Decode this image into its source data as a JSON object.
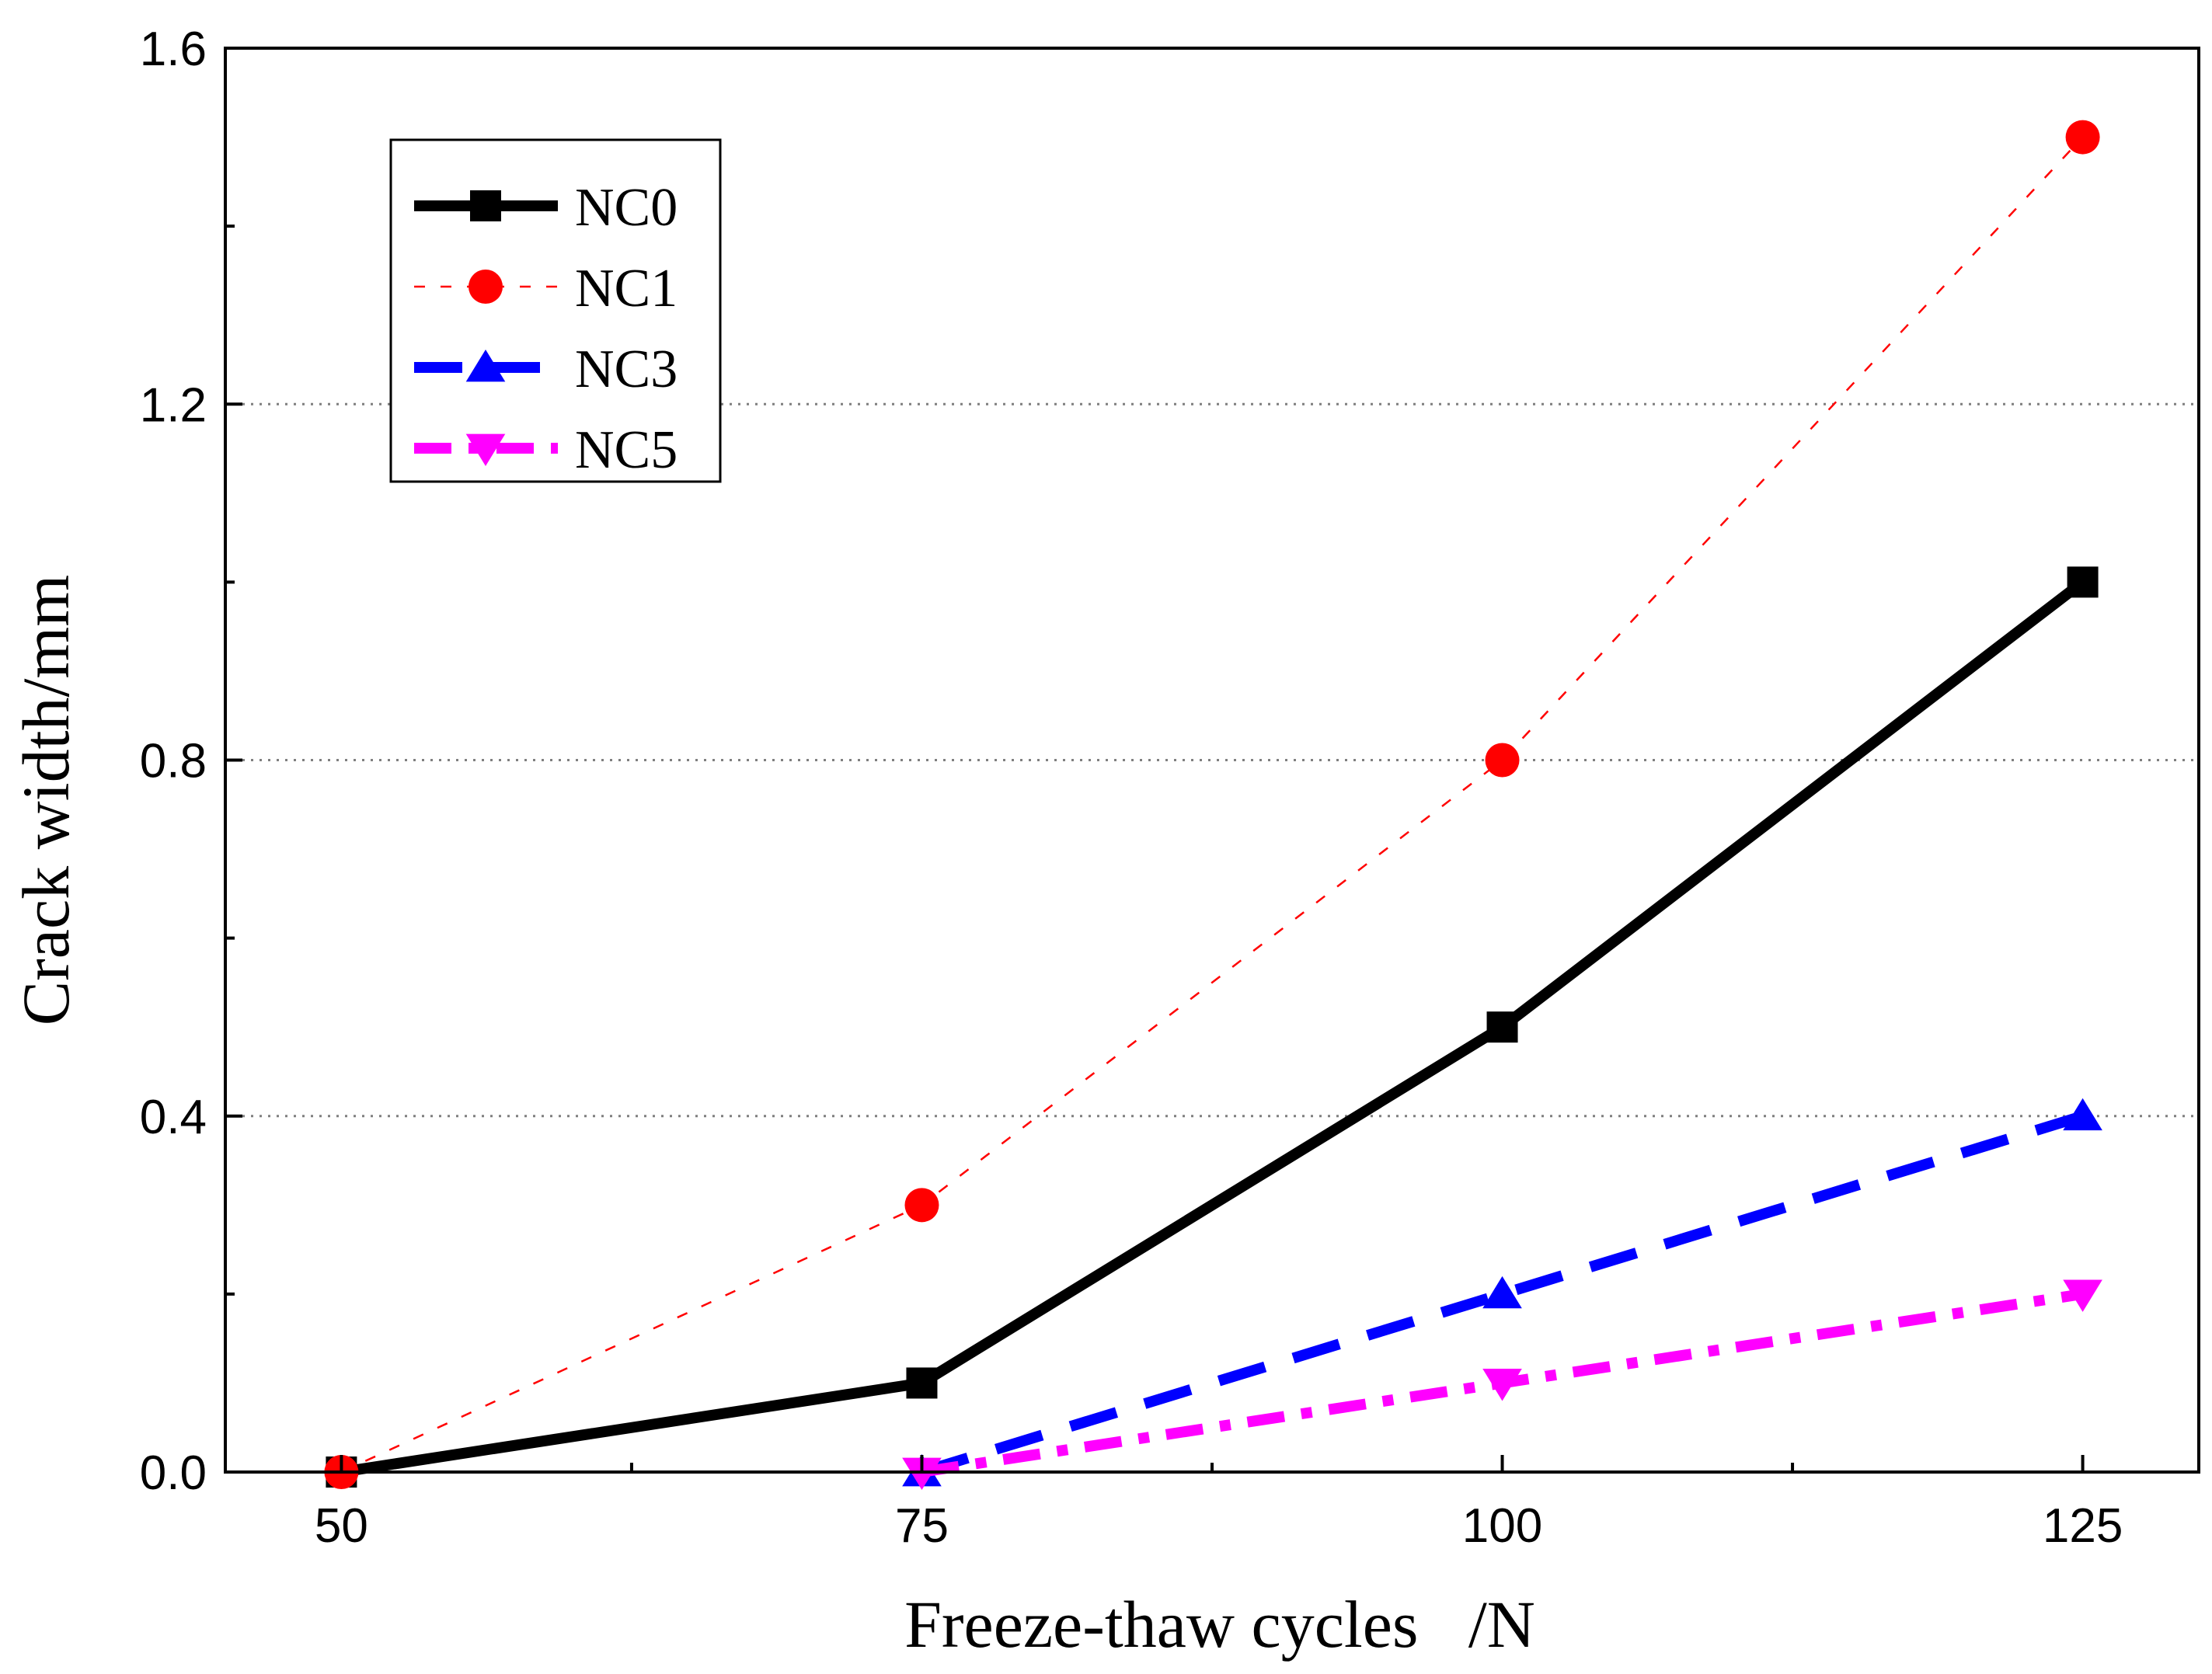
{
  "chart_data": {
    "type": "line",
    "title": "",
    "xlabel": "Freeze-thaw cycles   /N",
    "ylabel": "Crack width/mm",
    "x": [
      50,
      75,
      100,
      125
    ],
    "xlim": [
      45,
      130
    ],
    "ylim": [
      0.0,
      1.6
    ],
    "xticks": [
      50,
      75,
      100,
      125
    ],
    "yticks": [
      0.0,
      0.4,
      0.8,
      1.2,
      1.6
    ],
    "xtick_labels": [
      "50",
      "75",
      "100",
      "125"
    ],
    "ytick_labels": [
      "0.0",
      "0.4",
      "0.8",
      "1.2",
      "1.6"
    ],
    "grid": "horizontal dotted at 0.4, 0.8, 1.2",
    "legend_position": "top-left",
    "series": [
      {
        "name": "NC0",
        "x": [
          50,
          75,
          100,
          125
        ],
        "values": [
          0.0,
          0.1,
          0.5,
          1.0
        ],
        "color": "#000000",
        "marker": "square",
        "line": "solid"
      },
      {
        "name": "NC1",
        "x": [
          50,
          75,
          100,
          125
        ],
        "values": [
          0.0,
          0.3,
          0.8,
          1.5
        ],
        "color": "#ff0000",
        "marker": "circle",
        "line": "dotted"
      },
      {
        "name": "NC3",
        "x": [
          75,
          100,
          125
        ],
        "values": [
          0.0,
          0.2,
          0.4
        ],
        "color": "#0000ff",
        "marker": "triangle-up",
        "line": "dashed"
      },
      {
        "name": "NC5",
        "x": [
          75,
          100,
          125
        ],
        "values": [
          0.0,
          0.1,
          0.2
        ],
        "color": "#ff00ff",
        "marker": "triangle-down",
        "line": "dash-dot"
      }
    ]
  }
}
